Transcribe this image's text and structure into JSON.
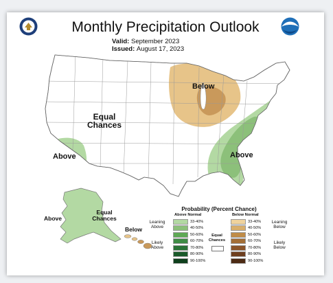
{
  "title": "Monthly Precipitation Outlook",
  "valid_label": "Valid:",
  "valid_value": "September 2023",
  "issued_label": "Issued:",
  "issued_value": "August 17, 2023",
  "map_labels": {
    "below_great_lakes": "Below",
    "equal_chances_west": "Equal Chances",
    "above_southwest": "Above",
    "above_southeast": "Above",
    "above_alaska": "Above",
    "equal_chances_alaska": "Equal Chances",
    "below_hawaii": "Below"
  },
  "legend": {
    "title": "Probability (Percent Chance)",
    "above_header": "Above Normal",
    "below_header": "Below Normal",
    "equal_chances": "Equal Chances",
    "leaning_above": "Leaning Above",
    "likely_above": "Likely Above",
    "leaning_below": "Leaning Below",
    "likely_below": "Likely Below",
    "bins": [
      "33-40%",
      "40-50%",
      "50-60%",
      "60-70%",
      "70-80%",
      "80-90%",
      "90-100%"
    ],
    "above_colors": [
      "#b3d9a3",
      "#8cc07a",
      "#5fa955",
      "#3f8c45",
      "#2a7236",
      "#1a5a2a",
      "#0e3f1c"
    ],
    "below_colors": [
      "#f0d39d",
      "#d9af6b",
      "#c08c48",
      "#a36e36",
      "#8a5429",
      "#6e3f1f",
      "#4c2a14"
    ]
  },
  "colors": {
    "leaning_above": "#b3d9a3",
    "above_40_50": "#8cc07a",
    "leaning_below": "#e7c489",
    "below_40_50": "#c9995b"
  },
  "icons": [
    "doc-seal-icon",
    "noaa-logo-icon"
  ]
}
